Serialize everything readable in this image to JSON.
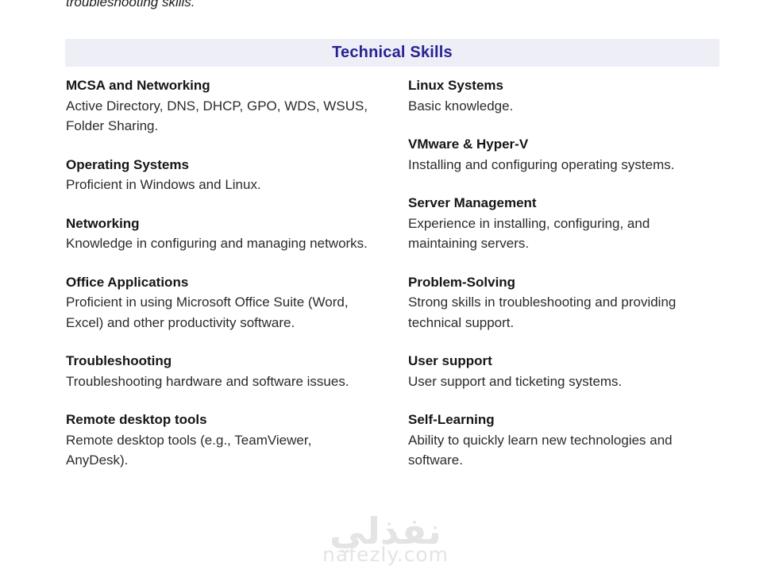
{
  "document": {
    "top_text": "troubleshooting skills.",
    "section_title": "Technical Skills"
  },
  "colors": {
    "section_bar_bg": "#edeef6",
    "section_title": "#2a2191",
    "heading_text": "#161616",
    "body_text": "#2b2b2b",
    "watermark": "#e4e4e5"
  },
  "skills_columns": {
    "left": [
      {
        "title": "MCSA and Networking",
        "description": "Active Directory, DNS, DHCP, GPO, WDS, WSUS, Folder Sharing."
      },
      {
        "title": "Operating Systems",
        "description": "Proficient in Windows and Linux."
      },
      {
        "title": "Networking",
        "description": "Knowledge in configuring and managing networks."
      },
      {
        "title": "Office Applications",
        "description": "Proficient in using Microsoft Office Suite (Word, Excel) and other productivity software."
      },
      {
        "title": "Troubleshooting",
        "description": "Troubleshooting hardware and software issues."
      },
      {
        "title": "Remote desktop tools",
        "description": "Remote desktop tools (e.g., TeamViewer, AnyDesk)."
      }
    ],
    "right": [
      {
        "title": "Linux Systems",
        "description": "Basic knowledge."
      },
      {
        "title": "VMware & Hyper-V",
        "description": "Installing and configuring operating systems."
      },
      {
        "title": "Server Management",
        "description": "Experience in installing, configuring, and maintaining servers."
      },
      {
        "title": "Problem-Solving",
        "description": "Strong skills in troubleshooting and providing technical support."
      },
      {
        "title": "User support",
        "description": "User support and ticketing systems."
      },
      {
        "title": "Self-Learning",
        "description": "Ability to quickly learn new technologies and software."
      }
    ]
  },
  "watermark": {
    "arabic_text": "نفذلي",
    "domain_text": "nafezly.com"
  }
}
